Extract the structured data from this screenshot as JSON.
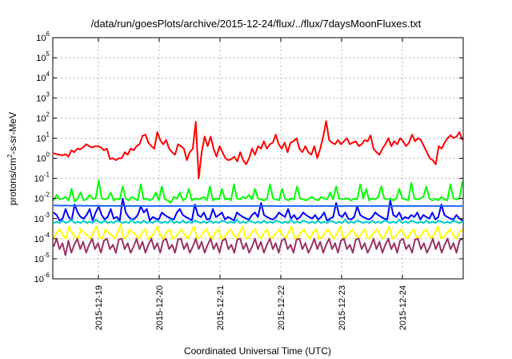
{
  "chart_data": {
    "type": "line",
    "title": "/data/run/goesPlots/archive/2015-12-24/flux/../flux/7daysMoonFluxes.txt",
    "xlabel": "Coordinated Universal Time (UTC)",
    "ylabel_parts": [
      "protons/cm",
      "2",
      "-s-sr-MeV"
    ],
    "y_scale": "log",
    "ylim": [
      1e-06,
      1000000.0
    ],
    "y_ticks": [
      {
        "base": "10",
        "exp": "6"
      },
      {
        "base": "10",
        "exp": "5"
      },
      {
        "base": "10",
        "exp": "4"
      },
      {
        "base": "10",
        "exp": "3"
      },
      {
        "base": "10",
        "exp": "2"
      },
      {
        "base": "10",
        "exp": "1"
      },
      {
        "base": "10",
        "exp": "0"
      },
      {
        "base": "10",
        "exp": "-1"
      },
      {
        "base": "10",
        "exp": "-2"
      },
      {
        "base": "10",
        "exp": "-3"
      },
      {
        "base": "10",
        "exp": "-4"
      },
      {
        "base": "10",
        "exp": "-5"
      },
      {
        "base": "10",
        "exp": "-6"
      }
    ],
    "xlim": [
      "2015-12-18T06:00",
      "2015-12-25T00:00"
    ],
    "x_ticks": [
      "2015-12-19",
      "2015-12-20",
      "2015-12-21",
      "2015-12-22",
      "2015-12-23",
      "2015-12-24"
    ],
    "grid": true,
    "series": [
      {
        "color": "#ff0000",
        "width": 2,
        "values": [
          1.8,
          1.6,
          1.5,
          1.4,
          1.6,
          1.2,
          2.5,
          2,
          3,
          2.8,
          3.5,
          5,
          4,
          3.5,
          4,
          4,
          3.5,
          2.5,
          3,
          0.9,
          1,
          0.8,
          1,
          1,
          2,
          1.5,
          3,
          2.5,
          4,
          5,
          13,
          15,
          6,
          4,
          3,
          20,
          8,
          5,
          8,
          3,
          2,
          1.5,
          5,
          4,
          3,
          0.8,
          2,
          3,
          65,
          0.1,
          2,
          12,
          4,
          12,
          3,
          1.2,
          4,
          2,
          1,
          0.8,
          0.9,
          1.2,
          0.7,
          2,
          0.8,
          0.5,
          1,
          3,
          1.5,
          4,
          3,
          7,
          3,
          5,
          6,
          15,
          5,
          3,
          6,
          2,
          6,
          7,
          10,
          3,
          2,
          4,
          2,
          1.5,
          4,
          1,
          3,
          12,
          70,
          8,
          6,
          5,
          8,
          5,
          7,
          10,
          5,
          6,
          7,
          4,
          5,
          8,
          7,
          14,
          3,
          2,
          1.5,
          3,
          5,
          10,
          4,
          7,
          5,
          10,
          7,
          4,
          6,
          15,
          7,
          10,
          8,
          4,
          2,
          1,
          0.8,
          0.5,
          4,
          3,
          6,
          10,
          14,
          10,
          12,
          20,
          8
        ]
      },
      {
        "color": "#00ff00",
        "width": 2,
        "values": [
          0.008,
          0.015,
          0.009,
          0.01,
          0.012,
          0.008,
          0.03,
          0.007,
          0.01,
          0.02,
          0.008,
          0.009,
          0.015,
          0.01,
          0.01,
          0.08,
          0.01,
          0.009,
          0.01,
          0.02,
          0.008,
          0.01,
          0.009,
          0.04,
          0.01,
          0.008,
          0.012,
          0.01,
          0.008,
          0.05,
          0.009,
          0.01,
          0.008,
          0.01,
          0.02,
          0.008,
          0.04,
          0.009,
          0.008,
          0.006,
          0.012,
          0.01,
          0.02,
          0.008,
          0.01,
          0.03,
          0.008,
          0.01,
          0.009,
          0.01,
          0.012,
          0.008,
          0.04,
          0.008,
          0.01,
          0.009,
          0.03,
          0.009,
          0.01,
          0.008,
          0.05,
          0.01,
          0.009,
          0.012,
          0.01,
          0.015,
          0.009,
          0.03,
          0.01,
          0.009,
          0.008,
          0.01,
          0.05,
          0.01,
          0.009,
          0.008,
          0.03,
          0.01,
          0.008,
          0.01,
          0.009,
          0.04,
          0.01,
          0.009,
          0.008,
          0.01,
          0.012,
          0.009,
          0.008,
          0.012,
          0.01,
          0.009,
          0.02,
          0.009,
          0.04,
          0.01,
          0.009,
          0.01,
          0.01,
          0.008,
          0.01,
          0.009,
          0.05,
          0.01,
          0.03,
          0.008,
          0.01,
          0.009,
          0.012,
          0.04,
          0.01,
          0.009,
          0.01,
          0.008,
          0.01,
          0.03,
          0.01,
          0.009,
          0.008,
          0.06,
          0.01,
          0.009,
          0.01,
          0.012,
          0.04,
          0.01,
          0.008,
          0.01,
          0.008,
          0.012,
          0.009,
          0.008,
          0.05,
          0.01,
          0.009,
          0.01,
          0.07
        ]
      },
      {
        "color": "#0000ff",
        "width": 2,
        "values": [
          0.002,
          0.0015,
          0.0008,
          0.001,
          0.003,
          0.0012,
          0.0008,
          0.005,
          0.002,
          0.0012,
          0.001,
          0.0015,
          0.003,
          0.0008,
          0.002,
          0.004,
          0.0015,
          0.0009,
          0.0012,
          0.003,
          0.001,
          0.0012,
          0.0008,
          0.01,
          0.002,
          0.0012,
          0.0009,
          0.001,
          0.0015,
          0.004,
          0.002,
          0.003,
          0.0008,
          0.0012,
          0.001,
          0.0009,
          0.002,
          0.0015,
          0.0012,
          0.001,
          0.0009,
          0.002,
          0.003,
          0.0015,
          0.0012,
          0.001,
          0.0008,
          0.005,
          0.0015,
          0.0012,
          0.002,
          0.0009,
          0.001,
          0.003,
          0.0012,
          0.0015,
          0.002,
          0.0009,
          0.0012,
          0.001,
          0.0008,
          0.002,
          0.0015,
          0.0012,
          0.001,
          0.0009,
          0.0015,
          0.002,
          0.0012,
          0.006,
          0.0015,
          0.0012,
          0.001,
          0.0009,
          0.0012,
          0.002,
          0.0015,
          0.0012,
          0.003,
          0.001,
          0.0015,
          0.0009,
          0.0012,
          0.002,
          0.0015,
          0.0012,
          0.001,
          0.0015,
          0.0009,
          0.0012,
          0.002,
          0.0008,
          0.001,
          0.0012,
          0.006,
          0.0015,
          0.0012,
          0.002,
          0.001,
          0.0009,
          0.0012,
          0.004,
          0.0015,
          0.0012,
          0.001,
          0.0009,
          0.0012,
          0.002,
          0.0015,
          0.0012,
          0.001,
          0.0009,
          0.008,
          0.0015,
          0.0012,
          0.002,
          0.0009,
          0.0012,
          0.001,
          0.0015,
          0.0012,
          0.002,
          0.0009,
          0.0015,
          0.0012,
          0.001,
          0.002,
          0.0009,
          0.0012,
          0.005,
          0.0015,
          0.0012,
          0.001,
          0.0009,
          0.0015,
          0.001,
          0.0008
        ]
      },
      {
        "color": "#00cccc",
        "width": 2,
        "values": [
          0.0006,
          0.0007,
          0.0006,
          0.0008,
          0.0006,
          0.0007,
          0.0009,
          0.0006,
          0.0007,
          0.0006,
          0.0008,
          0.0006,
          0.0007,
          0.0006,
          0.0009,
          0.0007,
          0.0006,
          0.0008,
          0.0006,
          0.0007,
          0.0006,
          0.0008,
          0.0007,
          0.0006,
          0.0007,
          0.0006,
          0.0009,
          0.0006,
          0.0007,
          0.0006,
          0.0008,
          0.0006,
          0.0007,
          0.0006,
          0.0008,
          0.0007,
          0.0006,
          0.0007,
          0.0006,
          0.0009,
          0.0006,
          0.0007,
          0.0006,
          0.0008,
          0.0006,
          0.0007,
          0.0006,
          0.0008,
          0.0007,
          0.0006,
          0.0007,
          0.0006,
          0.0008,
          0.0006,
          0.0007,
          0.0006,
          0.0008,
          0.0007,
          0.0006,
          0.0007,
          0.0006,
          0.0009,
          0.0006,
          0.0007,
          0.0006,
          0.0008,
          0.0007,
          0.0006,
          0.0007,
          0.0006,
          0.0008,
          0.0006,
          0.0007,
          0.0006,
          0.0008,
          0.0007,
          0.0006,
          0.0007,
          0.0006,
          0.0009,
          0.0006,
          0.0007,
          0.0006,
          0.0008,
          0.0007,
          0.0006,
          0.0007,
          0.0006,
          0.0008,
          0.0006,
          0.0007,
          0.0006,
          0.0008,
          0.0007,
          0.0006,
          0.0007,
          0.0006,
          0.0009,
          0.0006,
          0.0007,
          0.0006,
          0.0008,
          0.0007,
          0.0006,
          0.0007,
          0.0006,
          0.0008,
          0.0006,
          0.0007,
          0.0006,
          0.0008,
          0.0007,
          0.0006,
          0.0007,
          0.0006,
          0.0009,
          0.0006,
          0.0007,
          0.0006,
          0.0008,
          0.0007,
          0.0006,
          0.0007,
          0.0006,
          0.0008,
          0.0006,
          0.0007,
          0.0006,
          0.0008,
          0.0007,
          0.0006,
          0.0007,
          0.0006,
          0.0008,
          0.0007,
          0.0006,
          0.0007
        ]
      },
      {
        "color": "#1e66ff",
        "width": 2,
        "values": [
          0.0045,
          0.0045,
          0.0044,
          0.0044,
          0.0045,
          0.0044,
          0.0044,
          0.0043,
          0.0044,
          0.0044,
          0.0043,
          0.0044,
          0.0043,
          0.0043,
          0.0043,
          0.0044,
          0.0043,
          0.0043,
          0.0042,
          0.0043,
          0.0043,
          0.0042,
          0.0043,
          0.0042,
          0.0042,
          0.0043,
          0.0042,
          0.0042,
          0.0042,
          0.0042,
          0.0042,
          0.0042,
          0.0042,
          0.0042,
          0.0042,
          0.0043,
          0.0042,
          0.0042,
          0.0042,
          0.0042,
          0.0042,
          0.0042,
          0.0042,
          0.0042,
          0.0042,
          0.0042,
          0.0042,
          0.0042,
          0.0042,
          0.0042,
          0.0042,
          0.0042,
          0.0042,
          0.0042,
          0.0042,
          0.0042,
          0.0042,
          0.0042,
          0.0042,
          0.0042,
          0.0042,
          0.0042,
          0.0042,
          0.0042,
          0.0042,
          0.0042,
          0.0042,
          0.0042,
          0.0042,
          0.0042,
          0.0042,
          0.0042,
          0.0042,
          0.0042,
          0.0042,
          0.0042,
          0.0042,
          0.0042,
          0.0042,
          0.0042,
          0.0042,
          0.0042,
          0.0042,
          0.0042,
          0.0042,
          0.0042,
          0.0042,
          0.0042,
          0.0042,
          0.0042,
          0.0042,
          0.0042,
          0.0042,
          0.0042,
          0.0042,
          0.0042,
          0.0042,
          0.0042,
          0.0042,
          0.0042,
          0.0042,
          0.0042,
          0.0042,
          0.0042,
          0.0042,
          0.0042,
          0.0042,
          0.0042,
          0.0042,
          0.0042,
          0.0042,
          0.0042,
          0.0042,
          0.0042,
          0.0042,
          0.0042,
          0.0042,
          0.0042,
          0.0042,
          0.0042,
          0.0042,
          0.0042,
          0.0042,
          0.0042,
          0.0042,
          0.0042,
          0.0042,
          0.0042,
          0.0042,
          0.0042,
          0.0042,
          0.0042,
          0.0042,
          0.0042,
          0.0042,
          0.0042,
          0.0042
        ]
      },
      {
        "color": "#ffff00",
        "width": 2,
        "values": [
          0.0001,
          0.0002,
          0.0003,
          0.00015,
          0.0001,
          0.0004,
          0.0002,
          0.00012,
          0.0001,
          0.0003,
          0.0002,
          0.00015,
          0.0001,
          0.0002,
          0.0004,
          0.00012,
          0.0001,
          0.0003,
          0.0002,
          0.00015,
          0.0001,
          0.0002,
          0.0005,
          0.0001,
          0.00012,
          0.0003,
          0.0002,
          0.00015,
          0.0001,
          0.0002,
          0.0003,
          0.0001,
          0.00012,
          0.0002,
          0.0004,
          0.00015,
          0.0001,
          0.0002,
          0.0003,
          0.0001,
          0.00012,
          0.0002,
          0.0003,
          0.00015,
          0.0001,
          0.0002,
          0.0004,
          0.0001,
          0.00012,
          0.0002,
          0.0003,
          0.00015,
          0.0001,
          0.0002,
          0.0003,
          0.0001,
          0.00012,
          0.0002,
          0.0003,
          0.00015,
          0.0001,
          0.0002,
          0.0004,
          0.0001,
          0.00012,
          0.0002,
          0.0003,
          0.00015,
          0.0001,
          0.0002,
          0.0003,
          0.0001,
          0.00012,
          0.0002,
          0.0003,
          0.00015,
          0.0001,
          0.0002,
          0.0004,
          0.0001,
          0.00012,
          0.0002,
          0.0003,
          0.00015,
          0.0001,
          0.0002,
          0.0003,
          0.0001,
          0.00012,
          0.0002,
          0.0003,
          0.00015,
          0.0001,
          0.0002,
          0.0004,
          0.0001,
          0.00012,
          0.0002,
          0.0003,
          0.00015,
          0.0001,
          0.0002,
          0.0003,
          0.0001,
          0.00012,
          0.0002,
          0.0003,
          0.00015,
          0.0001,
          0.0002,
          0.0004,
          0.0001,
          0.00012,
          0.0002,
          0.0003,
          0.00015,
          0.0001,
          0.0002,
          0.0003,
          0.0001,
          0.00012,
          0.0002,
          0.0003,
          0.00015,
          0.0001,
          0.0002,
          0.0004,
          0.0001,
          0.00012,
          0.0002,
          0.0003,
          0.00015,
          0.0001,
          0.0002,
          0.0003
        ]
      },
      {
        "color": "#993366",
        "width": 2,
        "values": [
          4e-05,
          0.0001,
          3e-05,
          6e-05,
          1.5e-05,
          8e-05,
          2e-05,
          5e-05,
          0.0001,
          3e-05,
          7e-05,
          2e-05,
          5e-05,
          0.0001,
          3e-05,
          6e-05,
          2e-05,
          8e-05,
          0.0001,
          3e-05,
          5e-05,
          2e-05,
          9e-05,
          0.0001,
          3e-05,
          6e-05,
          2e-05,
          4e-05,
          0.0001,
          3e-05,
          7e-05,
          2e-05,
          5e-05,
          0.0001,
          3e-05,
          6e-05,
          2e-05,
          8e-05,
          0.0001,
          3e-05,
          5e-05,
          2e-05,
          9e-05,
          0.0001,
          3e-05,
          6e-05,
          2e-05,
          4e-05,
          0.0001,
          3e-05,
          7e-05,
          2e-05,
          5e-05,
          0.0001,
          3e-05,
          6e-05,
          2e-05,
          8e-05,
          0.0001,
          3e-05,
          5e-05,
          2e-05,
          9e-05,
          0.0001,
          3e-05,
          6e-05,
          2e-05,
          4e-05,
          0.0001,
          3e-05,
          7e-05,
          2e-05,
          5e-05,
          0.0001,
          3e-05,
          6e-05,
          2e-05,
          8e-05,
          0.0001,
          3e-05,
          5e-05,
          2e-05,
          9e-05,
          0.0001,
          3e-05,
          6e-05,
          2e-05,
          4e-05,
          0.0001,
          3e-05,
          7e-05,
          2e-05,
          5e-05,
          0.0001,
          3e-05,
          6e-05,
          2e-05,
          8e-05,
          0.0001,
          3e-05,
          5e-05,
          2e-05,
          9e-05,
          0.0001,
          3e-05,
          6e-05,
          2e-05,
          4e-05,
          0.0001,
          3e-05,
          7e-05,
          2e-05,
          5e-05,
          0.0001,
          3e-05,
          6e-05,
          2e-05,
          8e-05,
          0.0001,
          3e-05,
          5e-05,
          2e-05,
          9e-05,
          0.0001,
          3e-05,
          6e-05,
          2e-05,
          4e-05,
          0.0001,
          3e-05,
          7e-05,
          2e-05,
          5e-05,
          0.0001,
          3e-05,
          6e-05,
          2e-05,
          8e-05,
          0.0001
        ]
      }
    ]
  }
}
